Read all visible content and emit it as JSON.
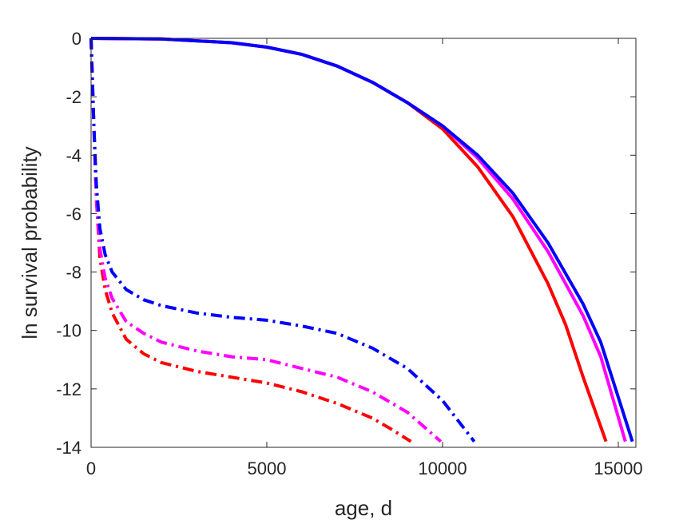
{
  "chart_data": {
    "type": "line",
    "title": "",
    "xlabel": "age, d",
    "ylabel": "ln survival probability",
    "xlim": [
      0,
      15500
    ],
    "ylim": [
      -14,
      0
    ],
    "xticks": [
      0,
      5000,
      10000,
      15000
    ],
    "xtick_labels": [
      "0",
      "5000",
      "10000",
      "15000"
    ],
    "yticks": [
      0,
      -2,
      -4,
      -6,
      -8,
      -10,
      -12,
      -14
    ],
    "ytick_labels": [
      "0",
      "-2",
      "-4",
      "-6",
      "-8",
      "-10",
      "-12",
      "-14"
    ],
    "grid": false,
    "legend": "none",
    "series": [
      {
        "color": "#ff0000",
        "style": "solid",
        "x": [
          0,
          2000,
          4000,
          5000,
          6000,
          7000,
          8000,
          9000,
          10000,
          11000,
          12000,
          13000,
          13500,
          14000,
          14650
        ],
        "y": [
          0,
          -0.02,
          -0.15,
          -0.3,
          -0.55,
          -0.95,
          -1.5,
          -2.2,
          -3.1,
          -4.4,
          -6.1,
          -8.4,
          -9.8,
          -11.6,
          -13.8
        ]
      },
      {
        "color": "#ff00ff",
        "style": "solid",
        "x": [
          0,
          2000,
          4000,
          5000,
          6000,
          7000,
          8000,
          9000,
          10000,
          11000,
          12000,
          13000,
          14000,
          14500,
          15200
        ],
        "y": [
          0,
          -0.02,
          -0.15,
          -0.3,
          -0.55,
          -0.95,
          -1.5,
          -2.2,
          -3.0,
          -4.1,
          -5.5,
          -7.3,
          -9.5,
          -10.9,
          -13.8
        ]
      },
      {
        "color": "#0000ff",
        "style": "solid",
        "x": [
          0,
          2000,
          4000,
          5000,
          6000,
          7000,
          8000,
          9000,
          10000,
          11000,
          12000,
          13000,
          14000,
          14500,
          15400
        ],
        "y": [
          0,
          -0.02,
          -0.15,
          -0.3,
          -0.55,
          -0.95,
          -1.5,
          -2.2,
          -3.0,
          -4.0,
          -5.3,
          -7.0,
          -9.1,
          -10.4,
          -13.8
        ]
      },
      {
        "color": "#ff0000",
        "style": "dashdot",
        "x": [
          0,
          80,
          150,
          250,
          400,
          600,
          1000,
          1500,
          2000,
          3000,
          4000,
          5000,
          6000,
          7000,
          8000,
          8500,
          9100
        ],
        "y": [
          0,
          -3.0,
          -5.5,
          -7.5,
          -8.6,
          -9.4,
          -10.3,
          -10.8,
          -11.1,
          -11.4,
          -11.6,
          -11.8,
          -12.1,
          -12.5,
          -13.0,
          -13.35,
          -13.8
        ]
      },
      {
        "color": "#ff00ff",
        "style": "dashdot",
        "x": [
          0,
          80,
          150,
          250,
          400,
          600,
          1000,
          1500,
          2000,
          3000,
          4000,
          5000,
          6000,
          7000,
          8000,
          9000,
          9950
        ],
        "y": [
          0,
          -3.0,
          -5.5,
          -7.2,
          -8.2,
          -8.9,
          -9.7,
          -10.1,
          -10.4,
          -10.7,
          -10.9,
          -11.0,
          -11.3,
          -11.6,
          -12.1,
          -12.8,
          -13.8
        ]
      },
      {
        "color": "#0000ff",
        "style": "dashdot",
        "x": [
          0,
          80,
          150,
          250,
          400,
          600,
          1000,
          1500,
          2000,
          3000,
          4000,
          5000,
          6000,
          7000,
          8000,
          9000,
          10000,
          10900
        ],
        "y": [
          0,
          -3.0,
          -5.0,
          -6.5,
          -7.4,
          -8.0,
          -8.6,
          -8.95,
          -9.15,
          -9.4,
          -9.55,
          -9.65,
          -9.85,
          -10.1,
          -10.6,
          -11.3,
          -12.4,
          -13.8
        ]
      }
    ]
  }
}
